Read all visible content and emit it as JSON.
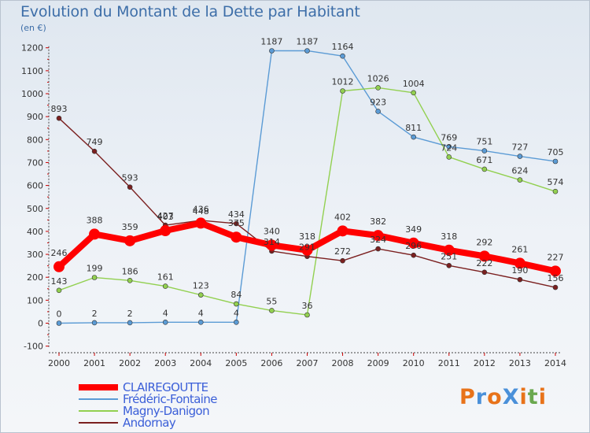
{
  "title": "Evolution du Montant de la Dette par Habitant",
  "subtitle": "(en €)",
  "logo": {
    "text": "ProXiti",
    "colors": [
      "#e8731a",
      "#4a90d9",
      "#e8731a",
      "#4a90d9",
      "#e8731a",
      "#6aa84f",
      "#e8731a"
    ]
  },
  "chart_data": {
    "type": "line",
    "categories": [
      "2000",
      "2001",
      "2002",
      "2003",
      "2004",
      "2005",
      "2006",
      "2007",
      "2008",
      "2009",
      "2010",
      "2011",
      "2012",
      "2013",
      "2014"
    ],
    "y_ticks": [
      "-100",
      "0",
      "100",
      "200",
      "300",
      "400",
      "500",
      "600",
      "700",
      "800",
      "900",
      "1000",
      "1100",
      "1200"
    ],
    "ylim": [
      -100,
      1200
    ],
    "grid": false,
    "legend_position": "bottom-left",
    "series": [
      {
        "name": "CLAIREGOUTTE",
        "color": "#ff0000",
        "highlight": true,
        "values": [
          246,
          388,
          359,
          403,
          436,
          375,
          340,
          318,
          402,
          382,
          349,
          318,
          292,
          261,
          227
        ],
        "labels": [
          "246",
          "388",
          "359",
          "403",
          "436",
          "375",
          "340",
          "318",
          "402",
          "382",
          "349",
          "318",
          "292",
          "261",
          "227"
        ]
      },
      {
        "name": "Frédéric-Fontaine",
        "color": "#5b9bd5",
        "values": [
          0,
          2,
          2,
          4,
          4,
          4,
          1187,
          1187,
          1164,
          923,
          811,
          769,
          751,
          727,
          705
        ],
        "labels": [
          "0",
          "2",
          "2",
          "4",
          "4",
          "4",
          "1187",
          "1187",
          "1164",
          "923",
          "811",
          "769",
          "751",
          "727",
          "705"
        ]
      },
      {
        "name": "Magny-Danigon",
        "color": "#92d050",
        "values": [
          143,
          199,
          186,
          161,
          123,
          84,
          55,
          36,
          1012,
          1026,
          1004,
          724,
          671,
          624,
          574
        ],
        "labels": [
          "143",
          "199",
          "186",
          "161",
          "123",
          "84",
          "55",
          "36",
          "1012",
          "1026",
          "1004",
          "724",
          "671",
          "624",
          "574"
        ]
      },
      {
        "name": "Andornay",
        "color": "#7b2020",
        "values": [
          893,
          749,
          593,
          427,
          448,
          434,
          314,
          291,
          272,
          324,
          296,
          251,
          222,
          190,
          156
        ],
        "labels": [
          "893",
          "749",
          "593",
          "427",
          "448",
          "434",
          "314",
          "291",
          "272",
          "324",
          "296",
          "251",
          "222",
          "190",
          "156"
        ]
      }
    ]
  }
}
